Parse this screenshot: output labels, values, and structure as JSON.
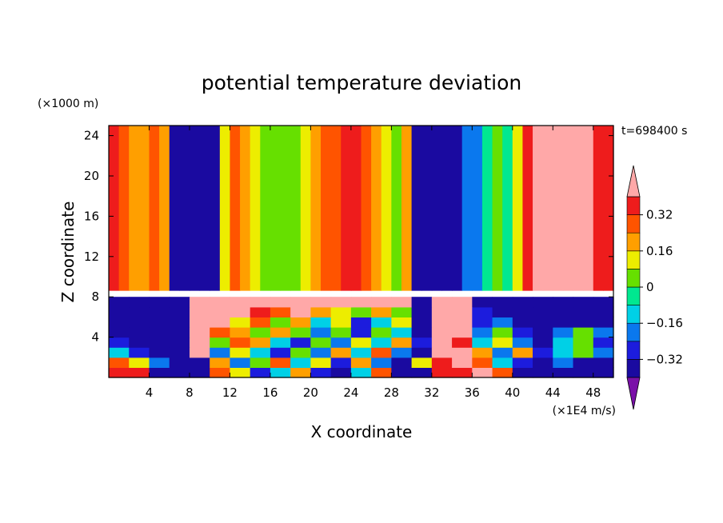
{
  "chart_data": {
    "type": "heatmap",
    "title": "potential temperature deviation",
    "xlabel": "X coordinate",
    "ylabel": "Z coordinate",
    "x_unit": "(×1E4 m/s)",
    "y_unit": "(×1000 m)",
    "time_label": "t=698400 s",
    "xlim": [
      0,
      50
    ],
    "ylim": [
      0,
      25
    ],
    "x_ticks": [
      4,
      8,
      12,
      16,
      20,
      24,
      28,
      32,
      36,
      40,
      44,
      48
    ],
    "y_ticks": [
      4,
      8,
      12,
      16,
      20,
      24
    ],
    "colorbar": {
      "levels": [
        -0.4,
        -0.32,
        -0.24,
        -0.16,
        -0.08,
        0,
        0.08,
        0.16,
        0.24,
        0.32,
        0.4
      ],
      "tick_labels": [
        "−0.32",
        "−0.16",
        "0",
        "0.16",
        "0.32"
      ],
      "tick_values": [
        -0.32,
        -0.16,
        0,
        0.16,
        0.32
      ],
      "colors": [
        "#7a10a8",
        "#1a0aa0",
        "#1c1cdd",
        "#0a78ee",
        "#00d0e6",
        "#00e890",
        "#66e000",
        "#eded00",
        "#ff9f00",
        "#ff5400",
        "#ee1c1c",
        "#ffa8a8"
      ],
      "extend": "both"
    },
    "upper_layer_columns": {
      "z_range": [
        8.6,
        25
      ],
      "x": [
        0,
        1,
        2,
        3,
        4,
        5,
        6,
        7,
        8,
        9,
        10,
        11,
        12,
        13,
        14,
        15,
        16,
        17,
        18,
        19,
        20,
        21,
        22,
        23,
        24,
        25,
        26,
        27,
        28,
        29,
        30,
        31,
        32,
        33,
        34,
        35,
        36,
        37,
        38,
        39,
        40,
        41,
        42,
        43,
        44,
        45,
        46,
        47,
        48,
        49,
        50
      ],
      "values": [
        0.36,
        0.3,
        0.22,
        0.18,
        0.26,
        0.18,
        -0.4,
        -0.4,
        -0.4,
        -0.4,
        -0.4,
        0.14,
        0.26,
        0.2,
        0.12,
        0.06,
        0.02,
        0.02,
        0.06,
        0.12,
        0.18,
        0.26,
        0.3,
        0.36,
        0.34,
        0.26,
        0.16,
        0.08,
        0.06,
        0.16,
        -0.4,
        -0.4,
        -0.4,
        -0.4,
        -0.4,
        -0.18,
        -0.22,
        -0.06,
        0.0,
        -0.06,
        0.12,
        0.34,
        0.4,
        0.4,
        0.4,
        0.4,
        0.4,
        0.4,
        0.36,
        0.34,
        0.36
      ]
    },
    "lower_layer_rows": {
      "z": [
        0.5,
        1.5,
        2.5,
        3.5,
        4.5,
        5.5,
        6.5,
        7.5
      ],
      "x": [
        0,
        2,
        4,
        6,
        8,
        10,
        12,
        14,
        16,
        18,
        20,
        22,
        24,
        26,
        28,
        30,
        32,
        34,
        36,
        38,
        40,
        42,
        44,
        46,
        48,
        50
      ],
      "values": [
        [
          0.38,
          0.34,
          -0.36,
          -0.38,
          -0.38,
          0.3,
          0.1,
          -0.3,
          -0.1,
          0.2,
          -0.3,
          -0.4,
          -0.1,
          0.3,
          -0.4,
          -0.4,
          0.38,
          0.38,
          0.4,
          0.3,
          -0.4,
          -0.4,
          -0.4,
          -0.4,
          -0.4,
          -0.4
        ],
        [
          0.3,
          0.1,
          -0.2,
          -0.4,
          -0.38,
          0.2,
          -0.2,
          0.0,
          0.3,
          -0.1,
          0.1,
          -0.3,
          0.2,
          -0.2,
          -0.4,
          0.1,
          0.38,
          0.4,
          0.3,
          -0.1,
          -0.3,
          -0.4,
          -0.2,
          -0.4,
          -0.4,
          -0.38
        ],
        [
          -0.1,
          -0.3,
          -0.4,
          -0.4,
          0.4,
          -0.2,
          0.1,
          -0.1,
          -0.3,
          0.0,
          -0.2,
          0.2,
          -0.1,
          0.3,
          -0.2,
          -0.4,
          0.4,
          0.4,
          0.2,
          -0.2,
          0.2,
          -0.3,
          -0.1,
          0.0,
          -0.2,
          -0.1
        ],
        [
          -0.3,
          -0.4,
          -0.4,
          -0.4,
          0.4,
          0.0,
          0.3,
          0.2,
          -0.1,
          -0.3,
          0.0,
          -0.2,
          0.1,
          -0.1,
          0.2,
          -0.3,
          0.4,
          0.38,
          -0.1,
          0.1,
          -0.2,
          -0.4,
          -0.1,
          0.0,
          -0.3,
          0.0
        ],
        [
          -0.4,
          -0.4,
          -0.4,
          -0.4,
          0.4,
          0.3,
          0.2,
          0.0,
          0.2,
          0.0,
          -0.2,
          0.0,
          -0.3,
          0.0,
          -0.1,
          -0.4,
          0.4,
          0.4,
          -0.2,
          0.0,
          -0.3,
          -0.4,
          -0.2,
          0.0,
          -0.2,
          -0.2
        ],
        [
          -0.4,
          -0.4,
          -0.4,
          -0.4,
          0.4,
          0.4,
          0.1,
          0.3,
          0.0,
          0.2,
          -0.1,
          0.1,
          -0.3,
          -0.1,
          0.1,
          -0.4,
          0.4,
          0.4,
          -0.3,
          -0.2,
          -0.4,
          -0.4,
          -0.4,
          -0.4,
          -0.4,
          -0.4
        ],
        [
          -0.4,
          -0.4,
          -0.4,
          -0.4,
          0.4,
          0.4,
          0.4,
          0.38,
          0.3,
          0.4,
          0.2,
          0.1,
          0.0,
          0.2,
          0.0,
          -0.4,
          0.4,
          0.4,
          -0.3,
          -0.4,
          -0.4,
          -0.4,
          -0.4,
          -0.4,
          -0.4,
          -0.4
        ],
        [
          -0.4,
          -0.4,
          -0.4,
          -0.4,
          0.4,
          0.4,
          0.4,
          0.4,
          0.4,
          0.4,
          0.4,
          0.4,
          0.4,
          0.4,
          0.4,
          -0.4,
          0.4,
          0.4,
          -0.4,
          -0.4,
          -0.4,
          -0.4,
          -0.4,
          -0.4,
          -0.4,
          -0.4
        ]
      ]
    }
  }
}
